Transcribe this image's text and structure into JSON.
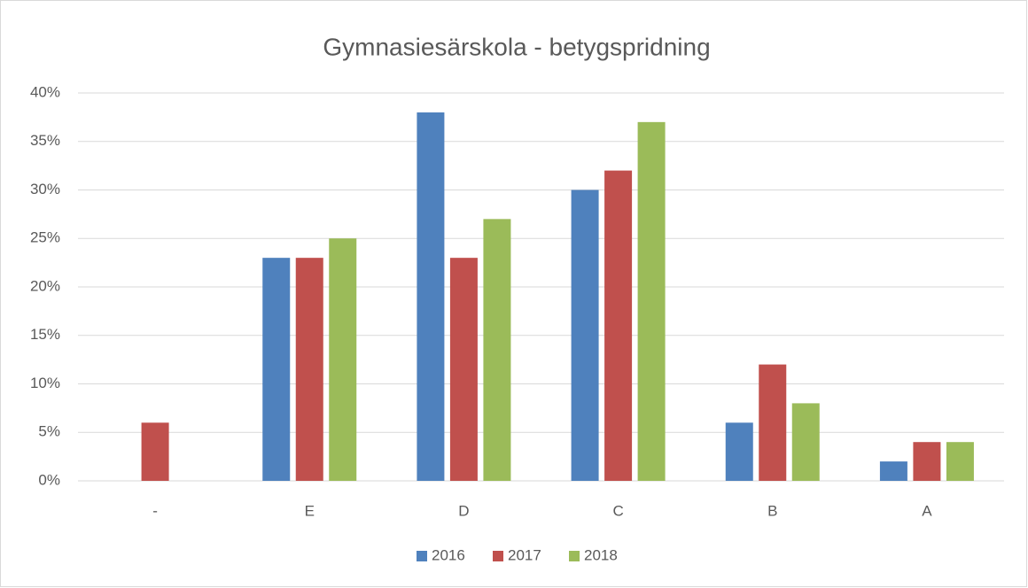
{
  "chart_data": {
    "type": "bar",
    "title": "Gymnasiesärskola - betygspridning",
    "categories": [
      "-",
      "E",
      "D",
      "C",
      "B",
      "A"
    ],
    "series": [
      {
        "name": "2016",
        "color": "#4f81bd",
        "values": [
          0,
          23,
          38,
          30,
          6,
          2
        ]
      },
      {
        "name": "2017",
        "color": "#c0504d",
        "values": [
          6,
          23,
          23,
          32,
          12,
          4
        ]
      },
      {
        "name": "2018",
        "color": "#9bbb59",
        "values": [
          0,
          25,
          27,
          37,
          8,
          4
        ]
      }
    ],
    "ylim": [
      0,
      40
    ],
    "yticks": [
      {
        "value": 0,
        "label": "0%"
      },
      {
        "value": 5,
        "label": "5%"
      },
      {
        "value": 10,
        "label": "10%"
      },
      {
        "value": 15,
        "label": "15%"
      },
      {
        "value": 20,
        "label": "20%"
      },
      {
        "value": 25,
        "label": "25%"
      },
      {
        "value": 30,
        "label": "30%"
      },
      {
        "value": 35,
        "label": "35%"
      },
      {
        "value": 40,
        "label": "40%"
      }
    ],
    "grid": true,
    "legend": "bottom"
  }
}
